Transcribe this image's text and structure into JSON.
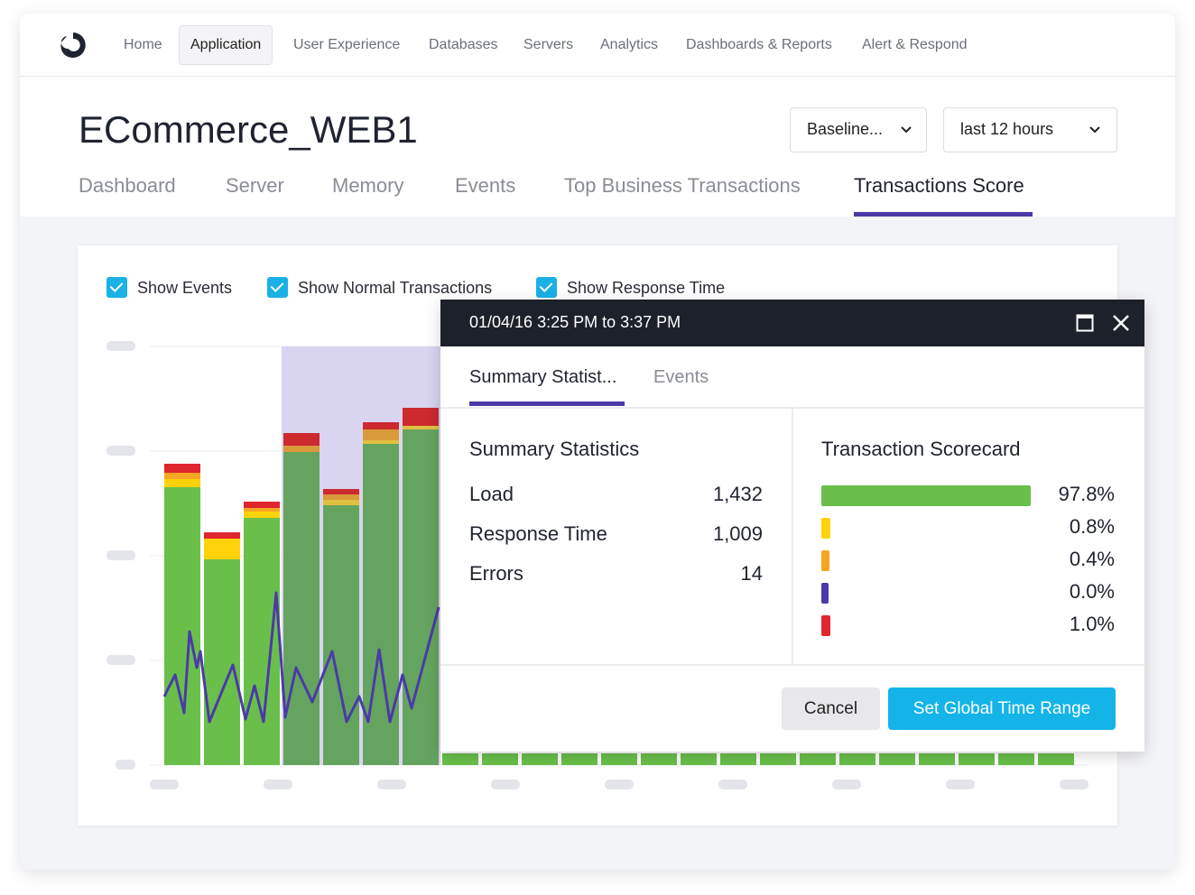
{
  "nav": {
    "items": [
      "Home",
      "Application",
      "User Experience",
      "Databases",
      "Servers",
      "Analytics",
      "Dashboards & Reports",
      "Alert & Respond"
    ]
  },
  "header": {
    "title": "ECommerce_WEB1",
    "dropdowns": [
      "Baseline...",
      "last 12 hours"
    ]
  },
  "tabs": [
    "Dashboard",
    "Server",
    "Memory",
    "Events",
    "Top Business Transactions",
    "Transactions Score"
  ],
  "checkboxes": [
    "Show Events",
    "Show Normal Transactions",
    "Show Response Time"
  ],
  "popup": {
    "header": "01/04/16 3:25 PM to 3:37 PM",
    "tabs": [
      "Summary Statist...",
      "Events"
    ],
    "summary": {
      "title": "Summary Statistics",
      "rows": [
        {
          "label": "Load",
          "value": "1,432"
        },
        {
          "label": "Response Time",
          "value": "1,009"
        },
        {
          "label": "Errors",
          "value": "14"
        }
      ]
    },
    "scorecard": {
      "title": "Transaction Scorecard",
      "items": [
        {
          "value": 97.8,
          "label": "97.8%",
          "color": "#6abf4b"
        },
        {
          "value": 0.8,
          "label": "0.8%",
          "color": "#ffd20a"
        },
        {
          "value": 0.4,
          "label": "0.4%",
          "color": "#f5a623"
        },
        {
          "value": 0.0,
          "label": "0.0%",
          "color": "#4b3aa8"
        },
        {
          "value": 1.0,
          "label": "1.0%",
          "color": "#e0262e"
        }
      ]
    },
    "buttons": [
      "Cancel",
      "Set Global Time Range"
    ]
  }
}
